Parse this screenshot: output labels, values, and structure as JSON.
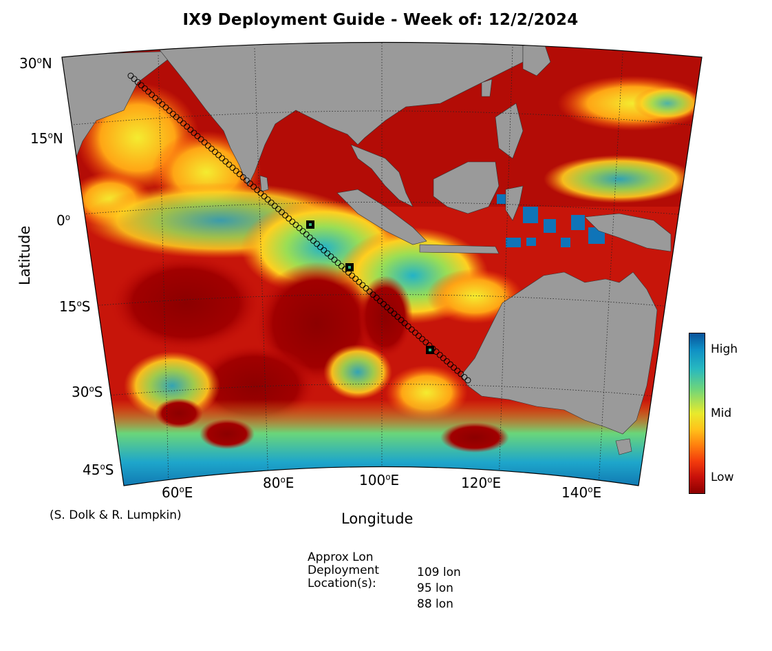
{
  "title": "IX9 Deployment Guide - Week of: 12/2/2024",
  "axes": {
    "ylabel": "Latitude",
    "xlabel": "Longitude"
  },
  "credit": "(S. Dolk & R. Lumpkin)",
  "lat_labels": [
    {
      "deg": "30",
      "hemi": "N"
    },
    {
      "deg": "15",
      "hemi": "N"
    },
    {
      "deg": "0",
      "hemi": ""
    },
    {
      "deg": "15",
      "hemi": "S"
    },
    {
      "deg": "30",
      "hemi": "S"
    },
    {
      "deg": "45",
      "hemi": "S"
    }
  ],
  "lon_labels": [
    {
      "deg": "60",
      "hemi": "E"
    },
    {
      "deg": "80",
      "hemi": "E"
    },
    {
      "deg": "100",
      "hemi": "E"
    },
    {
      "deg": "120",
      "hemi": "E"
    },
    {
      "deg": "140",
      "hemi": "E"
    }
  ],
  "colorbar": {
    "high": "High",
    "mid": "Mid",
    "low": "Low"
  },
  "deployment": {
    "header_lines": [
      "Approx Lon",
      "Deployment",
      "Location(s):"
    ],
    "locations": [
      "109 lon",
      "95 lon",
      "88 lon"
    ]
  },
  "colors": {
    "land": "#9a9a9a",
    "low": "#8c0000",
    "high": "#0b66a8",
    "track": "#000000"
  },
  "map_extent": {
    "lon_range": [
      50,
      150
    ],
    "lat_range": [
      -48,
      30
    ]
  }
}
